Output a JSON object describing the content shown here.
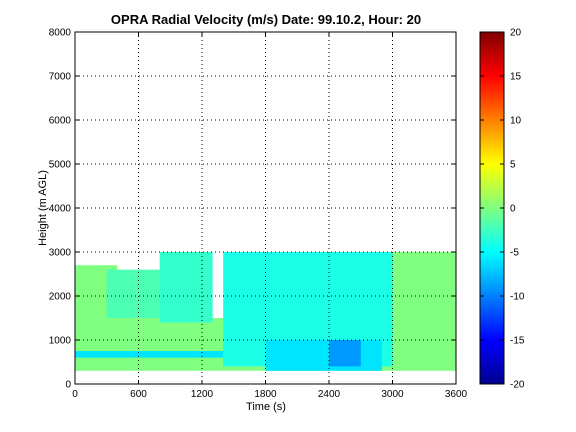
{
  "chart_data": {
    "type": "heatmap",
    "title": "OPRA Radial Velocity (m/s)  Date: 99.10.2, Hour: 20",
    "xlabel": "Time (s)",
    "ylabel": "Height (m AGL)",
    "xlim": [
      0,
      3600
    ],
    "ylim": [
      0,
      8000
    ],
    "x_ticks": [
      "0",
      "600",
      "1200",
      "1800",
      "2400",
      "3000",
      "3600"
    ],
    "y_ticks": [
      "0",
      "1000",
      "2000",
      "3000",
      "4000",
      "5000",
      "6000",
      "7000",
      "8000"
    ],
    "grid": true,
    "colorbar": {
      "colormap": "jet",
      "range": [
        -20,
        20
      ],
      "ticks": [
        "20",
        "15",
        "10",
        "5",
        "0",
        "-5",
        "-10",
        "-15",
        "-20"
      ]
    },
    "regions": [
      {
        "x": [
          0,
          3600
        ],
        "y": [
          300,
          1500
        ],
        "value": 0
      },
      {
        "x": [
          0,
          3600
        ],
        "y": [
          600,
          750
        ],
        "value": -6
      },
      {
        "x": [
          0,
          400
        ],
        "y": [
          1500,
          2700
        ],
        "value": 0
      },
      {
        "x": [
          300,
          1200
        ],
        "y": [
          1500,
          2600
        ],
        "value": -2
      },
      {
        "x": [
          800,
          1300
        ],
        "y": [
          1400,
          3000
        ],
        "value": -3
      },
      {
        "x": [
          1400,
          3000
        ],
        "y": [
          400,
          3000
        ],
        "value": -4
      },
      {
        "x": [
          1800,
          2900
        ],
        "y": [
          300,
          1000
        ],
        "value": -6
      },
      {
        "x": [
          2400,
          2700
        ],
        "y": [
          400,
          1000
        ],
        "value": -9
      },
      {
        "x": [
          3000,
          3600
        ],
        "y": [
          600,
          3000
        ],
        "value": 0
      }
    ]
  }
}
